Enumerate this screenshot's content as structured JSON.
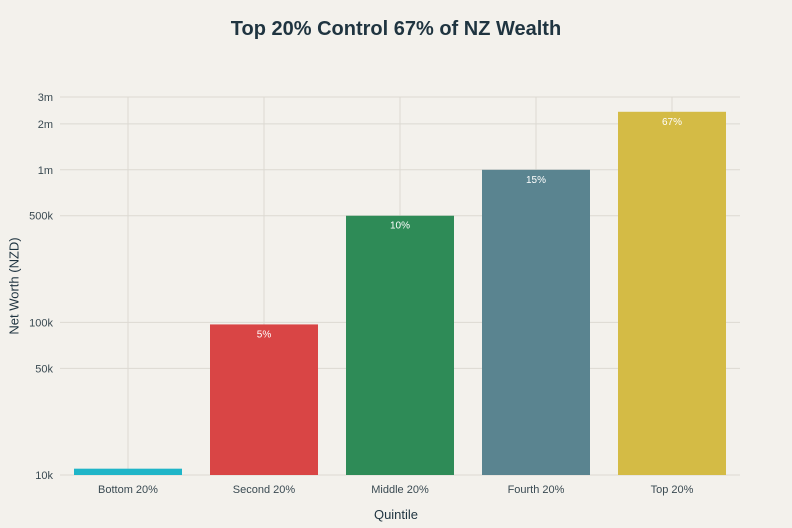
{
  "chart_data": {
    "type": "bar",
    "title": "Top 20% Control 67% of NZ Wealth",
    "xlabel": "Quintile",
    "ylabel": "Net Worth (NZD)",
    "yscale": "log",
    "ylim": [
      10000,
      3000000
    ],
    "yticks": [
      {
        "value": 10000,
        "label": "10k"
      },
      {
        "value": 50000,
        "label": "50k"
      },
      {
        "value": 100000,
        "label": "100k"
      },
      {
        "value": 500000,
        "label": "500k"
      },
      {
        "value": 1000000,
        "label": "1m"
      },
      {
        "value": 2000000,
        "label": "2m"
      },
      {
        "value": 3000000,
        "label": "3m"
      }
    ],
    "grid": true,
    "categories": [
      "Bottom 20%",
      "Second 20%",
      "Middle 20%",
      "Fourth 20%",
      "Top 20%"
    ],
    "values": [
      11000,
      97000,
      500000,
      1000000,
      2400000
    ],
    "data_labels": [
      "",
      "5%",
      "10%",
      "15%",
      "67%"
    ],
    "colors": [
      "#1fb5c8",
      "#d94545",
      "#2e8b57",
      "#5a8490",
      "#d4bb45"
    ]
  }
}
